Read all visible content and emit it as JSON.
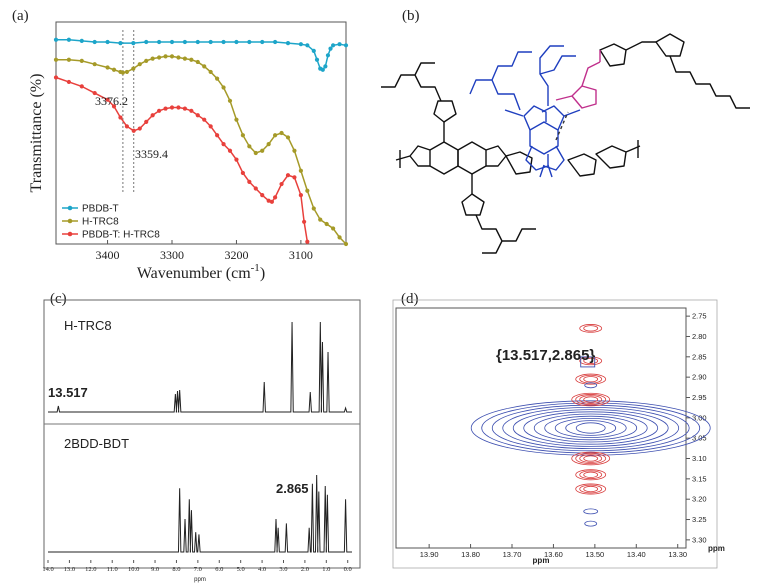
{
  "panels": {
    "a": {
      "label": "(a)"
    },
    "b": {
      "label": "(b)"
    },
    "c": {
      "label": "(c)"
    },
    "d": {
      "label": "(d)"
    }
  },
  "chart_data": [
    {
      "id": "a",
      "type": "line",
      "title": "",
      "xlabel": "Wavenumber (cm",
      "xlabel_sup": "-1",
      "xlabel_end": ")",
      "ylabel": "Transmittance (%)",
      "xlim": [
        3480,
        3030
      ],
      "ylim": [
        0,
        100
      ],
      "xticks": [
        3400,
        3300,
        3200,
        3100
      ],
      "reference_lines": [
        3376.2,
        3359.4
      ],
      "annotations": [
        "3376.2",
        "3359.4"
      ],
      "legend": [
        "PBDB-T",
        "H-TRC8",
        "PBDB-T: H-TRC8"
      ],
      "legend_position": "bottom-left",
      "series": [
        {
          "name": "PBDB-T",
          "color": "#1da5c9",
          "x": [
            3480,
            3460,
            3440,
            3420,
            3400,
            3380,
            3360,
            3340,
            3320,
            3300,
            3280,
            3260,
            3240,
            3220,
            3200,
            3180,
            3160,
            3140,
            3120,
            3100,
            3090,
            3080,
            3075,
            3070,
            3066,
            3062,
            3058,
            3054,
            3050,
            3040,
            3030
          ],
          "y": [
            92,
            92,
            91.5,
            91,
            91,
            90.5,
            90.5,
            91,
            91,
            91,
            91,
            91,
            91,
            91,
            91,
            91,
            91,
            91,
            90.5,
            90,
            89.5,
            87,
            83,
            79,
            78.5,
            80,
            85,
            88,
            89.5,
            90,
            89.5
          ]
        },
        {
          "name": "H-TRC8",
          "color": "#a59a28",
          "x": [
            3480,
            3460,
            3440,
            3420,
            3400,
            3390,
            3380,
            3376.2,
            3370,
            3360,
            3350,
            3340,
            3330,
            3320,
            3310,
            3300,
            3290,
            3280,
            3270,
            3260,
            3250,
            3240,
            3230,
            3220,
            3210,
            3200,
            3190,
            3180,
            3170,
            3160,
            3150,
            3140,
            3130,
            3120,
            3110,
            3100,
            3090,
            3080,
            3070,
            3060,
            3050,
            3040,
            3030
          ],
          "y": [
            83,
            83,
            82.5,
            81,
            79.5,
            78.5,
            77.5,
            77.2,
            77.5,
            79,
            81,
            82.5,
            83.5,
            84,
            84.5,
            84.5,
            84,
            83.5,
            83,
            82,
            80,
            77.5,
            74.5,
            70.5,
            64.5,
            56,
            49,
            44,
            41,
            42,
            45,
            49,
            50,
            48,
            42,
            33,
            24,
            16,
            11,
            9,
            7,
            3,
            0
          ]
        },
        {
          "name": "PBDB-T: H-TRC8",
          "color": "#e8403c",
          "x": [
            3480,
            3460,
            3440,
            3420,
            3400,
            3390,
            3380,
            3370,
            3359.4,
            3350,
            3340,
            3330,
            3320,
            3310,
            3300,
            3290,
            3280,
            3270,
            3260,
            3250,
            3240,
            3230,
            3220,
            3210,
            3200,
            3190,
            3180,
            3170,
            3160,
            3150,
            3145,
            3140,
            3130,
            3120,
            3110,
            3100,
            3095,
            3090
          ],
          "y": [
            75,
            73,
            71,
            68,
            65,
            62,
            57,
            53,
            51,
            52,
            55,
            58,
            60,
            61,
            61.5,
            61.5,
            61,
            60,
            58,
            56,
            53,
            49,
            45,
            42,
            38,
            32,
            28,
            25,
            22,
            19.5,
            19,
            21,
            27,
            31,
            30,
            22,
            10,
            1
          ]
        }
      ]
    },
    {
      "id": "c",
      "type": "line",
      "xlabel": "ppm",
      "xlim": [
        14.0,
        -0.2
      ],
      "xtick_labels": [
        "14.0",
        "13.0",
        "12.0",
        "11.0",
        "10.0",
        "9.0",
        "8.0",
        "7.0",
        "6.0",
        "5.0",
        "4.0",
        "3.0",
        "2.0",
        "1.0",
        "0.0"
      ],
      "series": [
        {
          "name": "H-TRC8",
          "color": "#222222",
          "peaks": [
            [
              13.517,
              6
            ],
            [
              8.05,
              18
            ],
            [
              7.95,
              21
            ],
            [
              7.85,
              22
            ],
            [
              3.9,
              30
            ],
            [
              2.6,
              90
            ],
            [
              1.75,
              20
            ],
            [
              1.28,
              90
            ],
            [
              1.18,
              70
            ],
            [
              0.92,
              60
            ],
            [
              0.1,
              4
            ]
          ]
        },
        {
          "name": "2BDD-BDT",
          "color": "#222222",
          "peaks": [
            [
              7.85,
              58
            ],
            [
              7.6,
              30
            ],
            [
              7.4,
              48
            ],
            [
              7.3,
              38
            ],
            [
              7.1,
              18
            ],
            [
              6.95,
              16
            ],
            [
              3.35,
              30
            ],
            [
              3.25,
              22
            ],
            [
              2.865,
              26
            ],
            [
              1.8,
              22
            ],
            [
              1.65,
              62
            ],
            [
              1.45,
              70
            ],
            [
              1.35,
              55
            ],
            [
              1.05,
              60
            ],
            [
              0.95,
              52
            ],
            [
              0.1,
              48
            ]
          ]
        }
      ],
      "annotations": [
        "13.517",
        "2.865"
      ]
    },
    {
      "id": "d",
      "type": "heatmap",
      "xlabel": "ppm",
      "ylabel": "ppm",
      "xlim": [
        13.98,
        13.28
      ],
      "ylim": [
        3.32,
        2.73
      ],
      "xticks": [
        "13.90",
        "13.80",
        "13.70",
        "13.60",
        "13.50",
        "13.40",
        "13.30"
      ],
      "yticks": [
        "2.75",
        "2.80",
        "2.85",
        "2.90",
        "2.95",
        "3.00",
        "3.05",
        "3.10",
        "3.15",
        "3.20",
        "3.25",
        "3.30"
      ],
      "annotation": "{13.517,2.865}",
      "colors": {
        "positive": "#3d4fb0",
        "negative": "#d83a3a"
      }
    }
  ]
}
